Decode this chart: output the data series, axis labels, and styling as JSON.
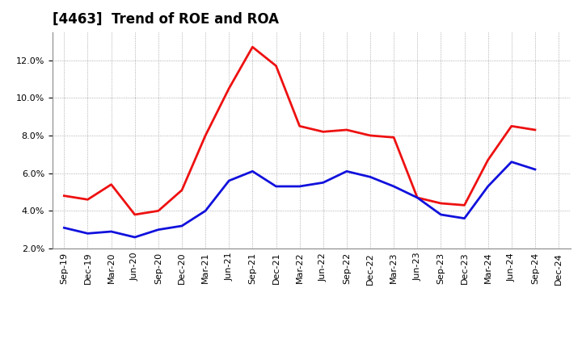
{
  "title": "[4463]  Trend of ROE and ROA",
  "x_labels": [
    "Sep-19",
    "Dec-19",
    "Mar-20",
    "Jun-20",
    "Sep-20",
    "Dec-20",
    "Mar-21",
    "Jun-21",
    "Sep-21",
    "Dec-21",
    "Mar-22",
    "Jun-22",
    "Sep-22",
    "Dec-22",
    "Mar-23",
    "Jun-23",
    "Sep-23",
    "Dec-23",
    "Mar-24",
    "Jun-24",
    "Sep-24",
    "Dec-24"
  ],
  "roe": [
    4.8,
    4.6,
    5.4,
    3.8,
    4.0,
    5.1,
    8.0,
    10.5,
    12.7,
    11.7,
    8.5,
    8.2,
    8.3,
    8.0,
    7.9,
    4.7,
    4.4,
    4.3,
    6.7,
    8.5,
    8.3,
    null
  ],
  "roa": [
    3.1,
    2.8,
    2.9,
    2.6,
    3.0,
    3.2,
    4.0,
    5.6,
    6.1,
    5.3,
    5.3,
    5.5,
    6.1,
    5.8,
    5.3,
    4.7,
    3.8,
    3.6,
    5.3,
    6.6,
    6.2,
    null
  ],
  "roe_color": "#ee1111",
  "roa_color": "#1111dd",
  "background_color": "#ffffff",
  "grid_color": "#999999",
  "ylim": [
    2.0,
    13.5
  ],
  "yticks": [
    2.0,
    4.0,
    6.0,
    8.0,
    10.0,
    12.0
  ],
  "title_fontsize": 12,
  "legend_fontsize": 10,
  "tick_fontsize": 8,
  "line_width": 2.0
}
